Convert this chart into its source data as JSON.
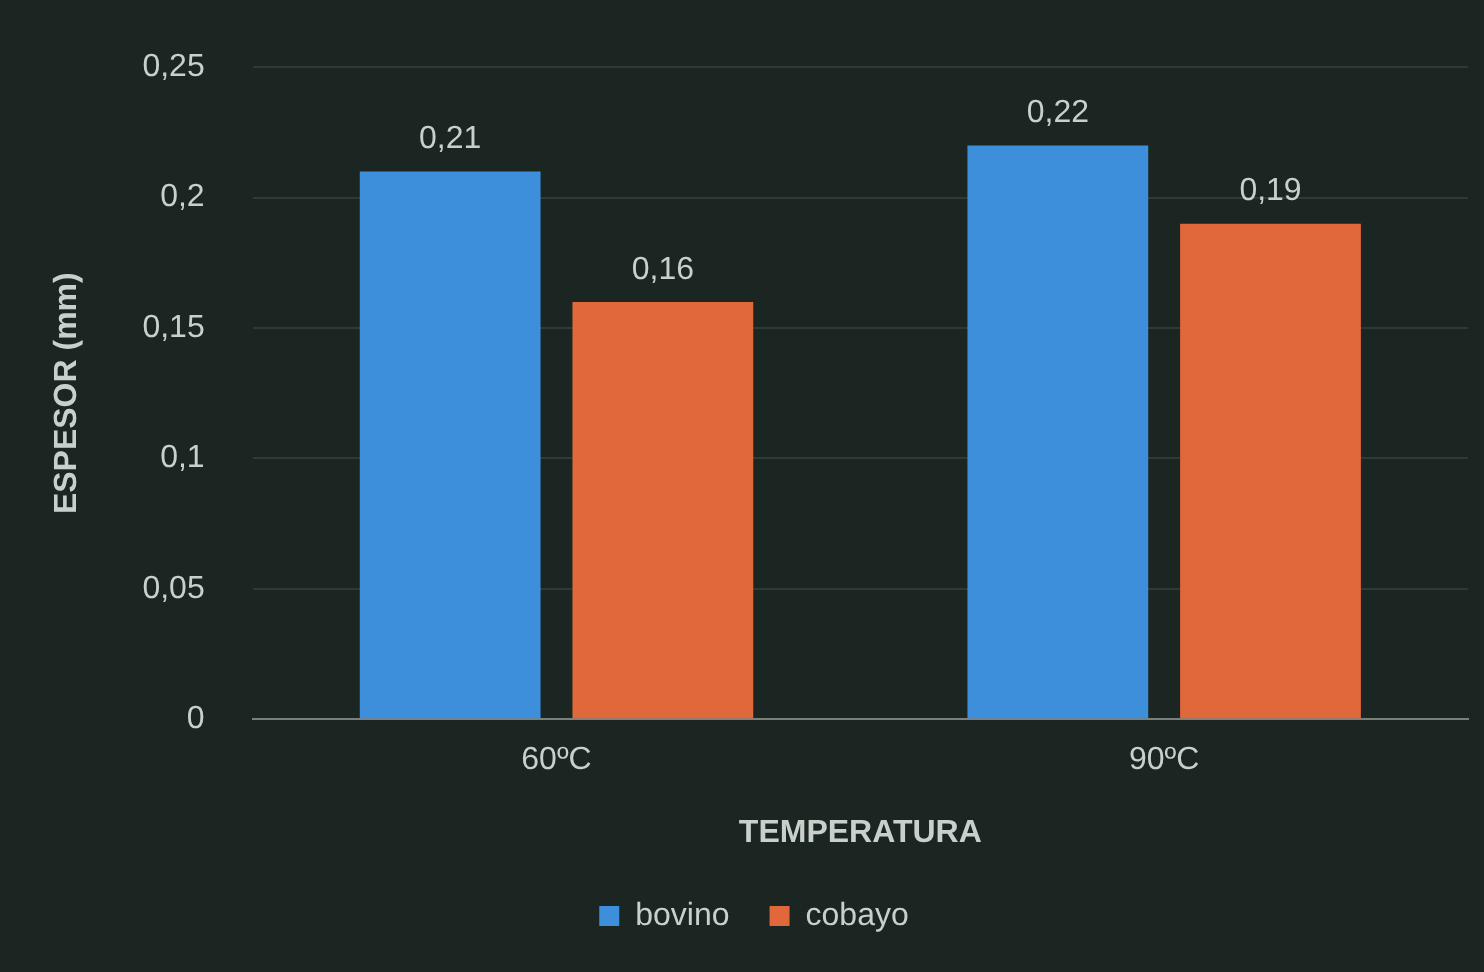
{
  "chart_data": {
    "type": "bar",
    "xlabel": "TEMPERATURA",
    "ylabel": "ESPESOR (mm)",
    "categories": [
      "60ºC",
      "90ºC"
    ],
    "series": [
      {
        "name": "bovino",
        "color": "#3d8fdb",
        "values": [
          0.21,
          0.22
        ],
        "value_labels": [
          "0,21",
          "0,22"
        ]
      },
      {
        "name": "cobayo",
        "color": "#e0683a",
        "values": [
          0.16,
          0.19
        ],
        "value_labels": [
          "0,16",
          "0,19"
        ]
      }
    ],
    "ylim": [
      0,
      0.25
    ],
    "yticks": [
      {
        "value": 0,
        "label": "0"
      },
      {
        "value": 0.05,
        "label": "0,05"
      },
      {
        "value": 0.1,
        "label": "0,1"
      },
      {
        "value": 0.15,
        "label": "0,15"
      },
      {
        "value": 0.2,
        "label": "0,2"
      },
      {
        "value": 0.25,
        "label": "0,25"
      }
    ],
    "grid": "y",
    "legend": "bottom"
  }
}
